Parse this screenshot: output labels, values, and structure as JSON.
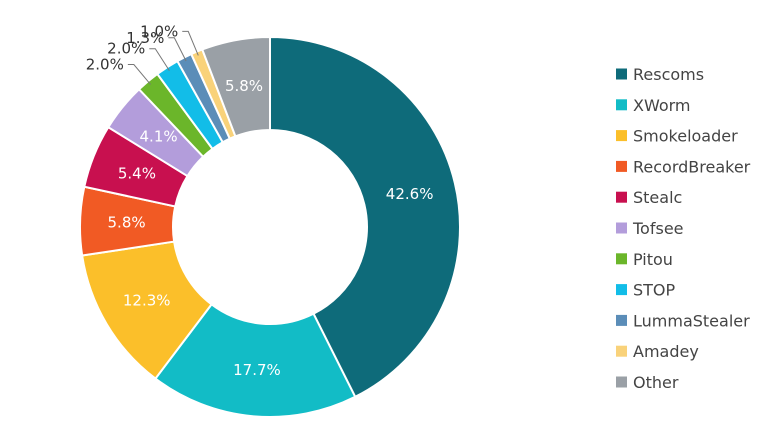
{
  "chart_data": {
    "type": "pie",
    "donut": true,
    "categories": [
      "Rescoms",
      "XWorm",
      "Smokeloader",
      "RecordBreaker",
      "Stealc",
      "Tofsee",
      "Pitou",
      "STOP",
      "LummaStealer",
      "Amadey",
      "Other"
    ],
    "values": [
      42.6,
      17.7,
      12.3,
      5.8,
      5.4,
      4.1,
      2.0,
      2.0,
      1.3,
      1.0,
      5.8
    ],
    "labels": [
      "42.6%",
      "17.7%",
      "12.3%",
      "5.8%",
      "5.4%",
      "4.1%",
      "2.0%",
      "2.0%",
      "1.3%",
      "1.0%",
      "5.8%"
    ],
    "colors": [
      "#0e6b7a",
      "#12bcc6",
      "#fbbf2a",
      "#f15a24",
      "#c8104f",
      "#b39ddb",
      "#6bb62a",
      "#12bde8",
      "#5b8db8",
      "#f9d27a",
      "#9aa0a6"
    ],
    "legend_position": "right",
    "title": "",
    "xlabel": "",
    "ylabel": ""
  }
}
